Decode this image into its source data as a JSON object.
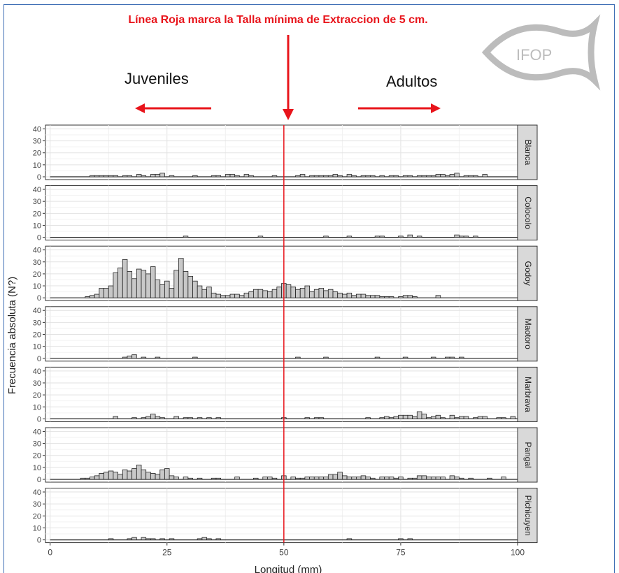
{
  "annotation": {
    "headline": "Línea Roja marca la Talla mínima de Extraccion de 5 cm.",
    "left_label": "Juveniles",
    "right_label": "Adultos"
  },
  "logo": {
    "text": "IFOP"
  },
  "colors": {
    "accent_red": "#e8141b",
    "bar_fill": "#c8c8c8",
    "bar_stroke": "#222222",
    "strip_fill": "#d9d9d9"
  },
  "chart_data": {
    "type": "bar",
    "subtype": "faceted-histogram",
    "xlabel": "Longitud (mm)",
    "ylabel": "Frecuencia absoluta (N?)",
    "xlim": [
      -1,
      100
    ],
    "ylim": [
      0,
      42
    ],
    "x_ticks": [
      0,
      25,
      50,
      75,
      100
    ],
    "y_ticks": [
      0,
      10,
      20,
      30,
      40
    ],
    "bin_width_mm": 1,
    "reference_line": {
      "x": 50,
      "color": "#e8141b"
    },
    "grid": true,
    "facets": [
      {
        "name": "Blanca",
        "bins": [
          [
            9,
            1
          ],
          [
            10,
            1
          ],
          [
            11,
            1
          ],
          [
            12,
            1
          ],
          [
            13,
            1
          ],
          [
            14,
            1
          ],
          [
            16,
            1
          ],
          [
            17,
            1
          ],
          [
            19,
            2
          ],
          [
            20,
            1
          ],
          [
            22,
            2
          ],
          [
            23,
            2
          ],
          [
            24,
            3
          ],
          [
            26,
            1
          ],
          [
            31,
            1
          ],
          [
            35,
            1
          ],
          [
            36,
            1
          ],
          [
            38,
            2
          ],
          [
            39,
            2
          ],
          [
            40,
            1
          ],
          [
            42,
            2
          ],
          [
            43,
            1
          ],
          [
            48,
            1
          ],
          [
            53,
            1
          ],
          [
            54,
            2
          ],
          [
            56,
            1
          ],
          [
            57,
            1
          ],
          [
            58,
            1
          ],
          [
            59,
            1
          ],
          [
            60,
            1
          ],
          [
            61,
            2
          ],
          [
            62,
            1
          ],
          [
            64,
            2
          ],
          [
            65,
            1
          ],
          [
            67,
            1
          ],
          [
            68,
            1
          ],
          [
            69,
            1
          ],
          [
            71,
            1
          ],
          [
            73,
            1
          ],
          [
            74,
            1
          ],
          [
            76,
            1
          ],
          [
            77,
            1
          ],
          [
            79,
            1
          ],
          [
            80,
            1
          ],
          [
            81,
            1
          ],
          [
            82,
            1
          ],
          [
            83,
            2
          ],
          [
            84,
            2
          ],
          [
            85,
            1
          ],
          [
            86,
            2
          ],
          [
            87,
            3
          ],
          [
            89,
            1
          ],
          [
            90,
            1
          ],
          [
            91,
            1
          ],
          [
            93,
            2
          ]
        ]
      },
      {
        "name": "Colocolo",
        "bins": [
          [
            29,
            1
          ],
          [
            45,
            1
          ],
          [
            59,
            1
          ],
          [
            64,
            1
          ],
          [
            70,
            1
          ],
          [
            71,
            1
          ],
          [
            75,
            1
          ],
          [
            77,
            2
          ],
          [
            79,
            1
          ],
          [
            87,
            2
          ],
          [
            88,
            1
          ],
          [
            89,
            1
          ],
          [
            91,
            1
          ]
        ]
      },
      {
        "name": "Godoy",
        "bins": [
          [
            8,
            1
          ],
          [
            9,
            2
          ],
          [
            10,
            3
          ],
          [
            11,
            8
          ],
          [
            12,
            8
          ],
          [
            13,
            10
          ],
          [
            14,
            21
          ],
          [
            15,
            25
          ],
          [
            16,
            32
          ],
          [
            17,
            22
          ],
          [
            18,
            16
          ],
          [
            19,
            24
          ],
          [
            20,
            23
          ],
          [
            21,
            20
          ],
          [
            22,
            26
          ],
          [
            23,
            15
          ],
          [
            24,
            11
          ],
          [
            25,
            14
          ],
          [
            26,
            8
          ],
          [
            27,
            23
          ],
          [
            28,
            33
          ],
          [
            29,
            22
          ],
          [
            30,
            18
          ],
          [
            31,
            14
          ],
          [
            32,
            10
          ],
          [
            33,
            7
          ],
          [
            34,
            9
          ],
          [
            35,
            4
          ],
          [
            36,
            3
          ],
          [
            37,
            2
          ],
          [
            38,
            2
          ],
          [
            39,
            3
          ],
          [
            40,
            3
          ],
          [
            41,
            2
          ],
          [
            42,
            4
          ],
          [
            43,
            5
          ],
          [
            44,
            7
          ],
          [
            45,
            7
          ],
          [
            46,
            6
          ],
          [
            47,
            5
          ],
          [
            48,
            7
          ],
          [
            49,
            9
          ],
          [
            50,
            12
          ],
          [
            51,
            11
          ],
          [
            52,
            9
          ],
          [
            53,
            7
          ],
          [
            54,
            8
          ],
          [
            55,
            10
          ],
          [
            56,
            5
          ],
          [
            57,
            7
          ],
          [
            58,
            8
          ],
          [
            59,
            6
          ],
          [
            60,
            7
          ],
          [
            61,
            5
          ],
          [
            62,
            4
          ],
          [
            63,
            3
          ],
          [
            64,
            4
          ],
          [
            65,
            2
          ],
          [
            66,
            3
          ],
          [
            67,
            3
          ],
          [
            68,
            2
          ],
          [
            69,
            2
          ],
          [
            70,
            2
          ],
          [
            71,
            1
          ],
          [
            72,
            1
          ],
          [
            73,
            1
          ],
          [
            75,
            1
          ],
          [
            76,
            2
          ],
          [
            77,
            2
          ],
          [
            78,
            1
          ],
          [
            83,
            2
          ]
        ]
      },
      {
        "name": "Maotoro",
        "bins": [
          [
            16,
            1
          ],
          [
            17,
            2
          ],
          [
            18,
            3
          ],
          [
            20,
            1
          ],
          [
            23,
            1
          ],
          [
            31,
            1
          ],
          [
            53,
            1
          ],
          [
            59,
            1
          ],
          [
            70,
            1
          ],
          [
            76,
            1
          ],
          [
            82,
            1
          ],
          [
            85,
            1
          ],
          [
            86,
            1
          ],
          [
            88,
            1
          ]
        ]
      },
      {
        "name": "Marbrava",
        "bins": [
          [
            14,
            2
          ],
          [
            18,
            1
          ],
          [
            20,
            1
          ],
          [
            21,
            2
          ],
          [
            22,
            4
          ],
          [
            23,
            2
          ],
          [
            24,
            1
          ],
          [
            27,
            2
          ],
          [
            29,
            1
          ],
          [
            30,
            1
          ],
          [
            32,
            1
          ],
          [
            34,
            1
          ],
          [
            36,
            1
          ],
          [
            50,
            1
          ],
          [
            55,
            1
          ],
          [
            57,
            1
          ],
          [
            58,
            1
          ],
          [
            68,
            1
          ],
          [
            71,
            1
          ],
          [
            72,
            2
          ],
          [
            73,
            1
          ],
          [
            74,
            2
          ],
          [
            75,
            3
          ],
          [
            76,
            3
          ],
          [
            77,
            3
          ],
          [
            78,
            2
          ],
          [
            79,
            6
          ],
          [
            80,
            4
          ],
          [
            81,
            1
          ],
          [
            82,
            2
          ],
          [
            83,
            3
          ],
          [
            84,
            1
          ],
          [
            86,
            3
          ],
          [
            87,
            1
          ],
          [
            88,
            2
          ],
          [
            89,
            2
          ],
          [
            91,
            1
          ],
          [
            92,
            2
          ],
          [
            93,
            2
          ],
          [
            96,
            1
          ],
          [
            97,
            1
          ],
          [
            99,
            2
          ]
        ]
      },
      {
        "name": "Pangal",
        "bins": [
          [
            7,
            1
          ],
          [
            8,
            1
          ],
          [
            9,
            2
          ],
          [
            10,
            3
          ],
          [
            11,
            5
          ],
          [
            12,
            6
          ],
          [
            13,
            7
          ],
          [
            14,
            6
          ],
          [
            15,
            4
          ],
          [
            16,
            8
          ],
          [
            17,
            7
          ],
          [
            18,
            9
          ],
          [
            19,
            12
          ],
          [
            20,
            8
          ],
          [
            21,
            6
          ],
          [
            22,
            5
          ],
          [
            23,
            4
          ],
          [
            24,
            8
          ],
          [
            25,
            9
          ],
          [
            26,
            3
          ],
          [
            27,
            2
          ],
          [
            29,
            2
          ],
          [
            30,
            1
          ],
          [
            32,
            1
          ],
          [
            35,
            1
          ],
          [
            36,
            1
          ],
          [
            40,
            2
          ],
          [
            44,
            1
          ],
          [
            46,
            2
          ],
          [
            47,
            2
          ],
          [
            48,
            1
          ],
          [
            50,
            3
          ],
          [
            52,
            2
          ],
          [
            53,
            1
          ],
          [
            54,
            1
          ],
          [
            55,
            2
          ],
          [
            56,
            2
          ],
          [
            57,
            2
          ],
          [
            58,
            2
          ],
          [
            59,
            2
          ],
          [
            60,
            4
          ],
          [
            61,
            4
          ],
          [
            62,
            6
          ],
          [
            63,
            3
          ],
          [
            64,
            2
          ],
          [
            65,
            2
          ],
          [
            66,
            2
          ],
          [
            67,
            3
          ],
          [
            68,
            2
          ],
          [
            69,
            1
          ],
          [
            71,
            2
          ],
          [
            72,
            2
          ],
          [
            73,
            2
          ],
          [
            74,
            1
          ],
          [
            75,
            2
          ],
          [
            77,
            1
          ],
          [
            78,
            1
          ],
          [
            79,
            3
          ],
          [
            80,
            3
          ],
          [
            81,
            2
          ],
          [
            82,
            2
          ],
          [
            83,
            2
          ],
          [
            84,
            2
          ],
          [
            86,
            3
          ],
          [
            87,
            2
          ],
          [
            88,
            1
          ],
          [
            90,
            1
          ],
          [
            94,
            1
          ],
          [
            97,
            2
          ]
        ]
      },
      {
        "name": "Pichicuyen",
        "bins": [
          [
            13,
            1
          ],
          [
            17,
            1
          ],
          [
            18,
            2
          ],
          [
            20,
            2
          ],
          [
            21,
            1
          ],
          [
            22,
            1
          ],
          [
            24,
            1
          ],
          [
            26,
            1
          ],
          [
            32,
            1
          ],
          [
            33,
            2
          ],
          [
            34,
            1
          ],
          [
            36,
            1
          ],
          [
            64,
            1
          ],
          [
            75,
            1
          ],
          [
            77,
            1
          ]
        ]
      }
    ]
  }
}
